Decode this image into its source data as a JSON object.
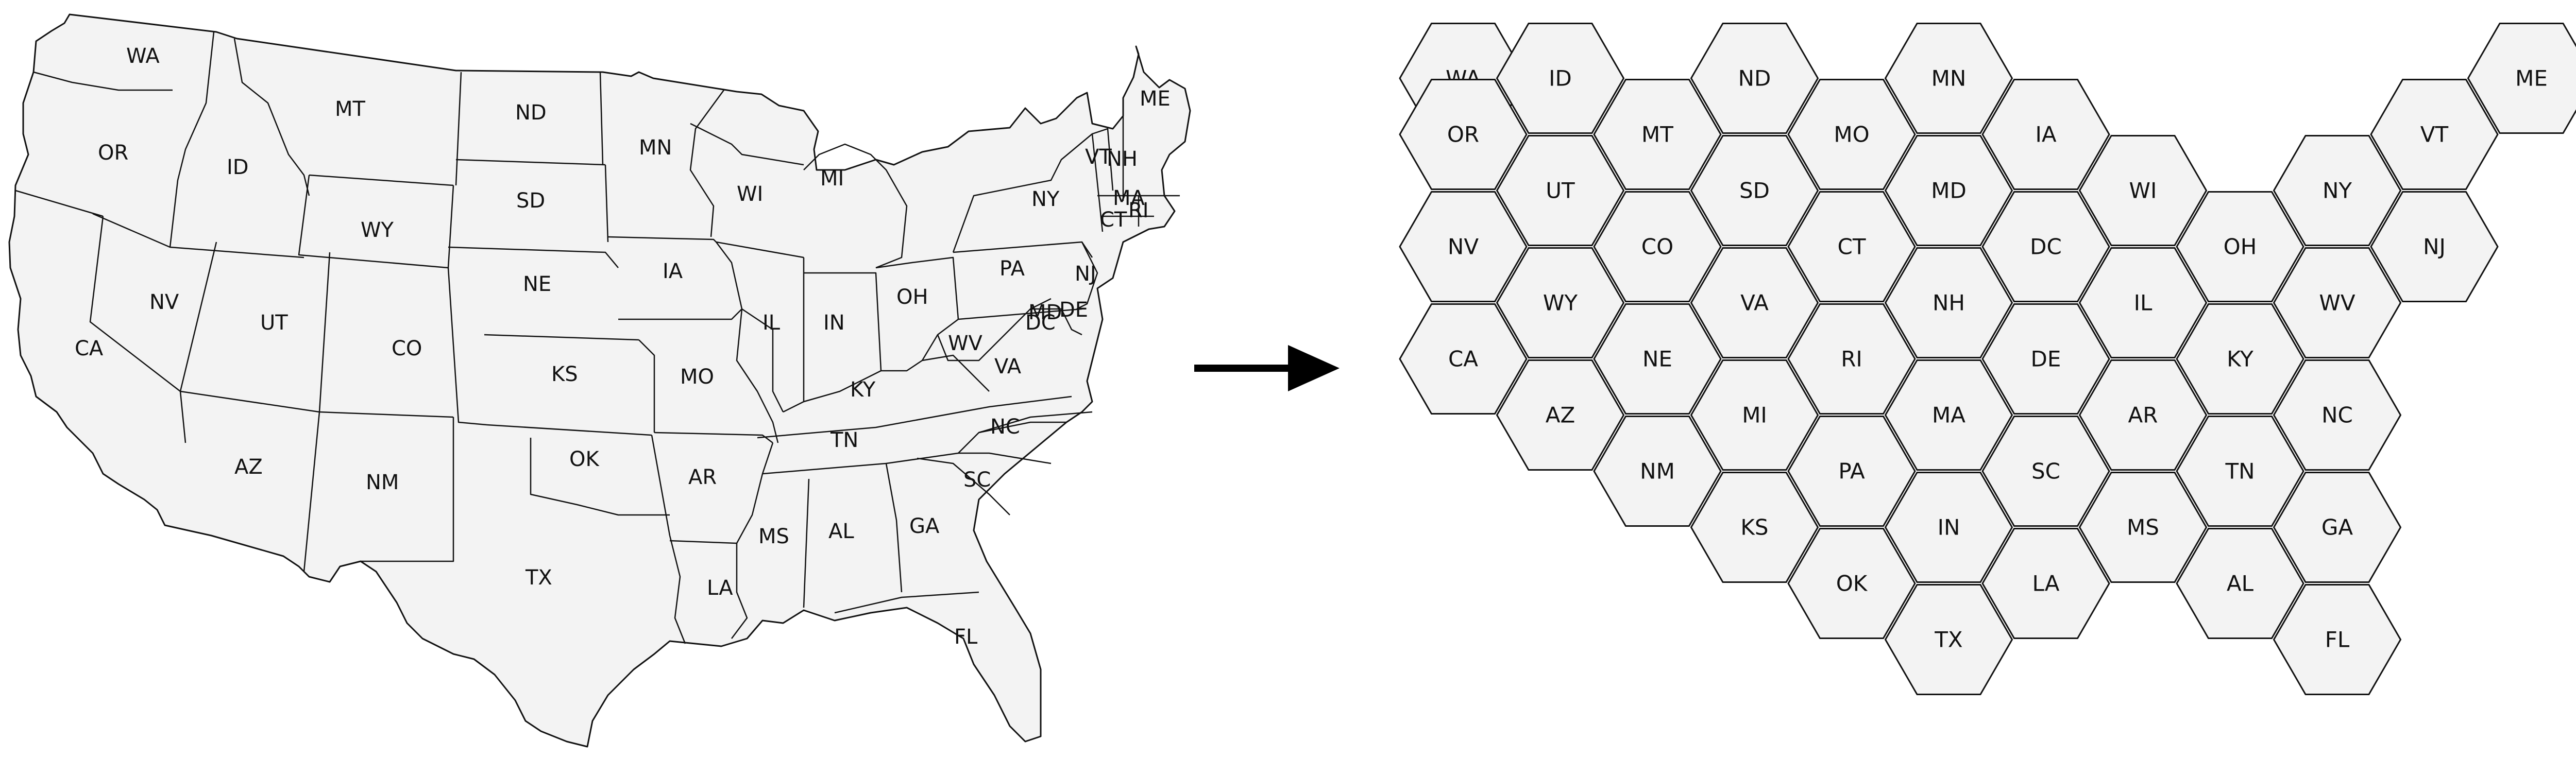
{
  "colors": {
    "fill": "#f3f3f3",
    "stroke": "#111111",
    "arrow": "#000000"
  },
  "geo_map": {
    "labels": [
      "WA",
      "OR",
      "CA",
      "ID",
      "NV",
      "MT",
      "WY",
      "UT",
      "AZ",
      "CO",
      "NM",
      "ND",
      "SD",
      "NE",
      "KS",
      "OK",
      "TX",
      "MN",
      "IA",
      "MO",
      "AR",
      "LA",
      "WI",
      "IL",
      "MI",
      "IN",
      "OH",
      "KY",
      "TN",
      "MS",
      "AL",
      "GA",
      "FL",
      "SC",
      "NC",
      "VA",
      "WV",
      "PA",
      "NY",
      "VT",
      "NH",
      "ME",
      "MA",
      "RI",
      "CT",
      "NJ",
      "MD",
      "DE",
      "DC"
    ]
  },
  "arrow": {
    "icon": "right-arrow-icon"
  },
  "hex_map": {
    "tiles": [
      {
        "label": "WA",
        "col": 0,
        "row": 0
      },
      {
        "label": "ID",
        "col": 1,
        "row": 0
      },
      {
        "label": "ND",
        "col": 3,
        "row": 0
      },
      {
        "label": "MN",
        "col": 5,
        "row": 0
      },
      {
        "label": "ME",
        "col": 11,
        "row": 0
      },
      {
        "label": "OR",
        "col": 0,
        "row": 1
      },
      {
        "label": "MT",
        "col": 2,
        "row": 1
      },
      {
        "label": "MO",
        "col": 4,
        "row": 1
      },
      {
        "label": "IA",
        "col": 6,
        "row": 1
      },
      {
        "label": "VT",
        "col": 10,
        "row": 1
      },
      {
        "label": "UT",
        "col": 1,
        "row": 2
      },
      {
        "label": "SD",
        "col": 3,
        "row": 2
      },
      {
        "label": "MD",
        "col": 5,
        "row": 2
      },
      {
        "label": "WI",
        "col": 7,
        "row": 2
      },
      {
        "label": "NY",
        "col": 9,
        "row": 2
      },
      {
        "label": "NV",
        "col": 0,
        "row": 3
      },
      {
        "label": "CO",
        "col": 2,
        "row": 3
      },
      {
        "label": "CT",
        "col": 4,
        "row": 3
      },
      {
        "label": "DC",
        "col": 6,
        "row": 3
      },
      {
        "label": "OH",
        "col": 8,
        "row": 3
      },
      {
        "label": "NJ",
        "col": 10,
        "row": 3
      },
      {
        "label": "WY",
        "col": 1,
        "row": 4
      },
      {
        "label": "VA",
        "col": 3,
        "row": 4
      },
      {
        "label": "NH",
        "col": 5,
        "row": 4
      },
      {
        "label": "IL",
        "col": 7,
        "row": 4
      },
      {
        "label": "WV",
        "col": 9,
        "row": 4
      },
      {
        "label": "CA",
        "col": 0,
        "row": 5
      },
      {
        "label": "NE",
        "col": 2,
        "row": 5
      },
      {
        "label": "RI",
        "col": 4,
        "row": 5
      },
      {
        "label": "DE",
        "col": 6,
        "row": 5
      },
      {
        "label": "KY",
        "col": 8,
        "row": 5
      },
      {
        "label": "AZ",
        "col": 1,
        "row": 6
      },
      {
        "label": "MI",
        "col": 3,
        "row": 6
      },
      {
        "label": "MA",
        "col": 5,
        "row": 6
      },
      {
        "label": "AR",
        "col": 7,
        "row": 6
      },
      {
        "label": "NC",
        "col": 9,
        "row": 6
      },
      {
        "label": "NM",
        "col": 2,
        "row": 7
      },
      {
        "label": "PA",
        "col": 4,
        "row": 7
      },
      {
        "label": "SC",
        "col": 6,
        "row": 7
      },
      {
        "label": "TN",
        "col": 8,
        "row": 7
      },
      {
        "label": "KS",
        "col": 3,
        "row": 8
      },
      {
        "label": "IN",
        "col": 5,
        "row": 8
      },
      {
        "label": "MS",
        "col": 7,
        "row": 8
      },
      {
        "label": "GA",
        "col": 9,
        "row": 8
      },
      {
        "label": "OK",
        "col": 4,
        "row": 9
      },
      {
        "label": "LA",
        "col": 6,
        "row": 9
      },
      {
        "label": "AL",
        "col": 8,
        "row": 9
      },
      {
        "label": "TX",
        "col": 5,
        "row": 10
      },
      {
        "label": "FL",
        "col": 9,
        "row": 10
      }
    ]
  }
}
